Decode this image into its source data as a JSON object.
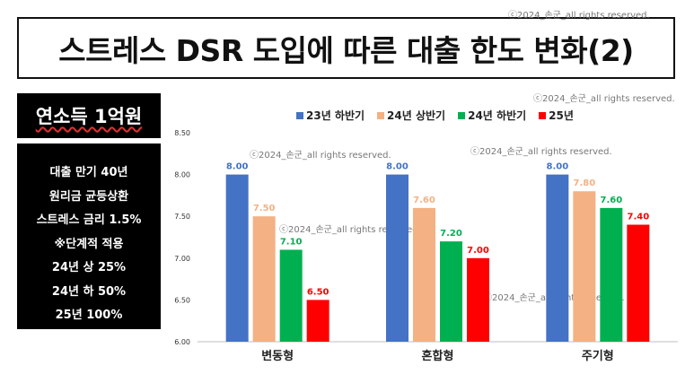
{
  "title": "스트레스 DSR 도입에 따른 대출 한도 변화(2)",
  "watermark": "ⓒ2024_손군_all rights reserved.",
  "sidebar": {
    "title": "연소득 1억원",
    "lines": [
      "대출 만기 40년",
      "원리금 균등상환",
      "스트레스 금리 1.5%",
      "※단계적 적용",
      "24년 상 25%",
      "24년 하 50%",
      "25년 100%"
    ]
  },
  "chart_data": {
    "type": "bar",
    "title": "",
    "xlabel": "",
    "ylabel": "",
    "categories": [
      "변동형",
      "혼합형",
      "주기형"
    ],
    "series": [
      {
        "name": "23년 하반기",
        "color": "#4472c4",
        "values": [
          8.0,
          8.0,
          8.0
        ]
      },
      {
        "name": "24년 상반기",
        "color": "#f4b183",
        "values": [
          7.5,
          7.6,
          7.8
        ]
      },
      {
        "name": "24년 하반기",
        "color": "#00b050",
        "values": [
          7.1,
          7.2,
          7.6
        ]
      },
      {
        "name": "25년",
        "color": "#ff0000",
        "values": [
          6.5,
          7.0,
          7.4
        ]
      }
    ],
    "ylim": [
      6.0,
      8.5
    ],
    "yticks": [
      "6.00",
      "6.50",
      "7.00",
      "7.50",
      "8.00",
      "8.50"
    ],
    "data_labels": [
      [
        "8.00",
        "8.00",
        "8.00"
      ],
      [
        "7.50",
        "7.60",
        "7.80"
      ],
      [
        "7.10",
        "7.20",
        "7.60"
      ],
      [
        "6.50",
        "7.00",
        "7.40"
      ]
    ],
    "legend_position": "top",
    "grid": false
  }
}
